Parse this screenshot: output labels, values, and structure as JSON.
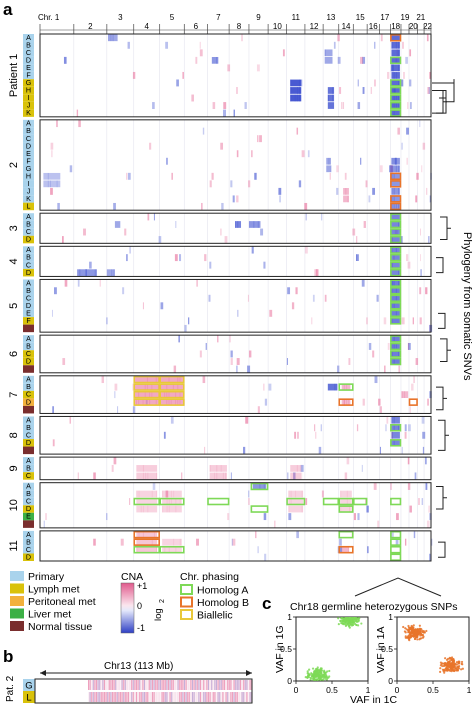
{
  "panel_a": {
    "letter": "a",
    "chromosomes": [
      {
        "label": "Chr. 1",
        "len": 249
      },
      {
        "label": "2",
        "len": 243
      },
      {
        "label": "3",
        "len": 198
      },
      {
        "label": "4",
        "len": 191
      },
      {
        "label": "5",
        "len": 181
      },
      {
        "label": "6",
        "len": 171
      },
      {
        "label": "7",
        "len": 159
      },
      {
        "label": "8",
        "len": 146
      },
      {
        "label": "9",
        "len": 141
      },
      {
        "label": "10",
        "len": 136
      },
      {
        "label": "11",
        "len": 135
      },
      {
        "label": "12",
        "len": 134
      },
      {
        "label": "13",
        "len": 115
      },
      {
        "label": "14",
        "len": 107
      },
      {
        "label": "15",
        "len": 102
      },
      {
        "label": "16",
        "len": 90
      },
      {
        "label": "17",
        "len": 81
      },
      {
        "label": "18",
        "len": 78
      },
      {
        "label": "19",
        "len": 59
      },
      {
        "label": "20",
        "len": 63
      },
      {
        "label": "21",
        "len": 48
      },
      {
        "label": "22",
        "len": 51
      }
    ],
    "patients": [
      {
        "name": "Patient 1",
        "samples": [
          {
            "id": "A",
            "type": "primary"
          },
          {
            "id": "B",
            "type": "primary"
          },
          {
            "id": "C",
            "type": "primary"
          },
          {
            "id": "D",
            "type": "primary"
          },
          {
            "id": "E",
            "type": "primary"
          },
          {
            "id": "F",
            "type": "primary"
          },
          {
            "id": "G",
            "type": "lymph"
          },
          {
            "id": "H",
            "type": "lymph"
          },
          {
            "id": "I",
            "type": "lymph"
          },
          {
            "id": "J",
            "type": "lymph"
          },
          {
            "id": "K",
            "type": "lymph"
          }
        ]
      },
      {
        "name": "2",
        "samples": [
          {
            "id": "A",
            "type": "primary"
          },
          {
            "id": "B",
            "type": "primary"
          },
          {
            "id": "C",
            "type": "primary"
          },
          {
            "id": "D",
            "type": "primary"
          },
          {
            "id": "E",
            "type": "primary"
          },
          {
            "id": "F",
            "type": "primary"
          },
          {
            "id": "G",
            "type": "primary"
          },
          {
            "id": "H",
            "type": "primary"
          },
          {
            "id": "I",
            "type": "primary"
          },
          {
            "id": "J",
            "type": "primary"
          },
          {
            "id": "K",
            "type": "primary"
          },
          {
            "id": "L",
            "type": "lymph"
          }
        ]
      },
      {
        "name": "3",
        "samples": [
          {
            "id": "A",
            "type": "primary"
          },
          {
            "id": "B",
            "type": "primary"
          },
          {
            "id": "C",
            "type": "primary"
          },
          {
            "id": "D",
            "type": "lymph"
          }
        ]
      },
      {
        "name": "4",
        "samples": [
          {
            "id": "A",
            "type": "primary"
          },
          {
            "id": "B",
            "type": "primary"
          },
          {
            "id": "C",
            "type": "primary"
          },
          {
            "id": "D",
            "type": "lymph"
          }
        ]
      },
      {
        "name": "5",
        "samples": [
          {
            "id": "A",
            "type": "primary"
          },
          {
            "id": "B",
            "type": "primary"
          },
          {
            "id": "C",
            "type": "primary"
          },
          {
            "id": "D",
            "type": "primary"
          },
          {
            "id": "E",
            "type": "primary"
          },
          {
            "id": "F",
            "type": "lymph"
          },
          {
            "id": "",
            "type": "normal"
          }
        ]
      },
      {
        "name": "6",
        "samples": [
          {
            "id": "A",
            "type": "primary"
          },
          {
            "id": "B",
            "type": "primary"
          },
          {
            "id": "C",
            "type": "lymph"
          },
          {
            "id": "D",
            "type": "lymph"
          },
          {
            "id": "",
            "type": "normal"
          }
        ]
      },
      {
        "name": "7",
        "samples": [
          {
            "id": "A",
            "type": "primary"
          },
          {
            "id": "B",
            "type": "primary"
          },
          {
            "id": "C",
            "type": "lymph"
          },
          {
            "id": "D",
            "type": "peritoneal"
          },
          {
            "id": "",
            "type": "normal"
          }
        ]
      },
      {
        "name": "8",
        "samples": [
          {
            "id": "A",
            "type": "primary"
          },
          {
            "id": "B",
            "type": "primary"
          },
          {
            "id": "C",
            "type": "primary"
          },
          {
            "id": "D",
            "type": "lymph"
          },
          {
            "id": "",
            "type": "normal"
          }
        ]
      },
      {
        "name": "9",
        "samples": [
          {
            "id": "A",
            "type": "primary"
          },
          {
            "id": "B",
            "type": "primary"
          },
          {
            "id": "C",
            "type": "lymph"
          }
        ]
      },
      {
        "name": "10",
        "samples": [
          {
            "id": "A",
            "type": "primary"
          },
          {
            "id": "B",
            "type": "primary"
          },
          {
            "id": "C",
            "type": "primary"
          },
          {
            "id": "D",
            "type": "lymph"
          },
          {
            "id": "E",
            "type": "liver"
          },
          {
            "id": "",
            "type": "normal"
          }
        ]
      },
      {
        "name": "11",
        "samples": [
          {
            "id": "A",
            "type": "primary"
          },
          {
            "id": "B",
            "type": "primary"
          },
          {
            "id": "C",
            "type": "primary"
          },
          {
            "id": "D",
            "type": "lymph"
          }
        ]
      }
    ],
    "phylogeny_label": "Phylogeny from somatic SNVs"
  },
  "legend": {
    "tissue": [
      {
        "label": "Primary",
        "color": "#a9d3ec"
      },
      {
        "label": "Lymph met",
        "color": "#d9c20a"
      },
      {
        "label": "Peritoneal met",
        "color": "#f2b13c"
      },
      {
        "label": "Liver met",
        "color": "#3cb045"
      },
      {
        "label": "Normal tissue",
        "color": "#7a2e2e"
      }
    ],
    "cna_title": "CNA",
    "cna_unit": "log",
    "cna_unit_sub": "2",
    "cna_ticks": [
      "+1",
      "0",
      "-1"
    ],
    "phasing_title": "Chr. phasing",
    "phasing": [
      {
        "label": "Homolog A",
        "color": "#7ed957"
      },
      {
        "label": "Homolog B",
        "color": "#e8742a"
      },
      {
        "label": "Biallelic",
        "color": "#e8c83a"
      }
    ]
  },
  "panel_b": {
    "letter": "b",
    "region_label": "Chr13 (113 Mb)",
    "patient_label": "Pat. 2",
    "samples": [
      "G",
      "L"
    ]
  },
  "panel_c": {
    "letter": "c",
    "title": "Chr18 germline heterozygous SNPs",
    "xlabel": "VAF in 1C",
    "ylabel_left": "VAF in 1G",
    "ylabel_right": "VAF in 1A",
    "ticks": [
      "0",
      "0.5",
      "1"
    ]
  },
  "chart_data": [
    {
      "type": "scatter",
      "title": "",
      "xlabel": "VAF in 1C",
      "ylabel": "VAF in 1G",
      "xlim": [
        0,
        1
      ],
      "ylim": [
        0,
        1
      ],
      "series": [
        {
          "color": "#7ed957",
          "clusters": [
            {
              "x": 0.75,
              "y": 0.95
            },
            {
              "x": 0.3,
              "y": 0.1
            }
          ]
        }
      ]
    },
    {
      "type": "scatter",
      "title": "",
      "xlabel": "VAF in 1C",
      "ylabel": "VAF in 1A",
      "xlim": [
        0,
        1
      ],
      "ylim": [
        0,
        1
      ],
      "series": [
        {
          "color": "#e8742a",
          "clusters": [
            {
              "x": 0.25,
              "y": 0.75
            },
            {
              "x": 0.75,
              "y": 0.25
            }
          ]
        }
      ]
    }
  ],
  "colors": {
    "gain": "#e8709b",
    "loss": "#3f51d0",
    "border": "#222222",
    "primary": "#a9d3ec",
    "lymph": "#d9c20a",
    "peritoneal": "#f2b13c",
    "liver": "#3cb045",
    "normal": "#7a2e2e",
    "homologA": "#7ed957",
    "homologB": "#e8742a",
    "biallelic": "#e8c83a"
  }
}
